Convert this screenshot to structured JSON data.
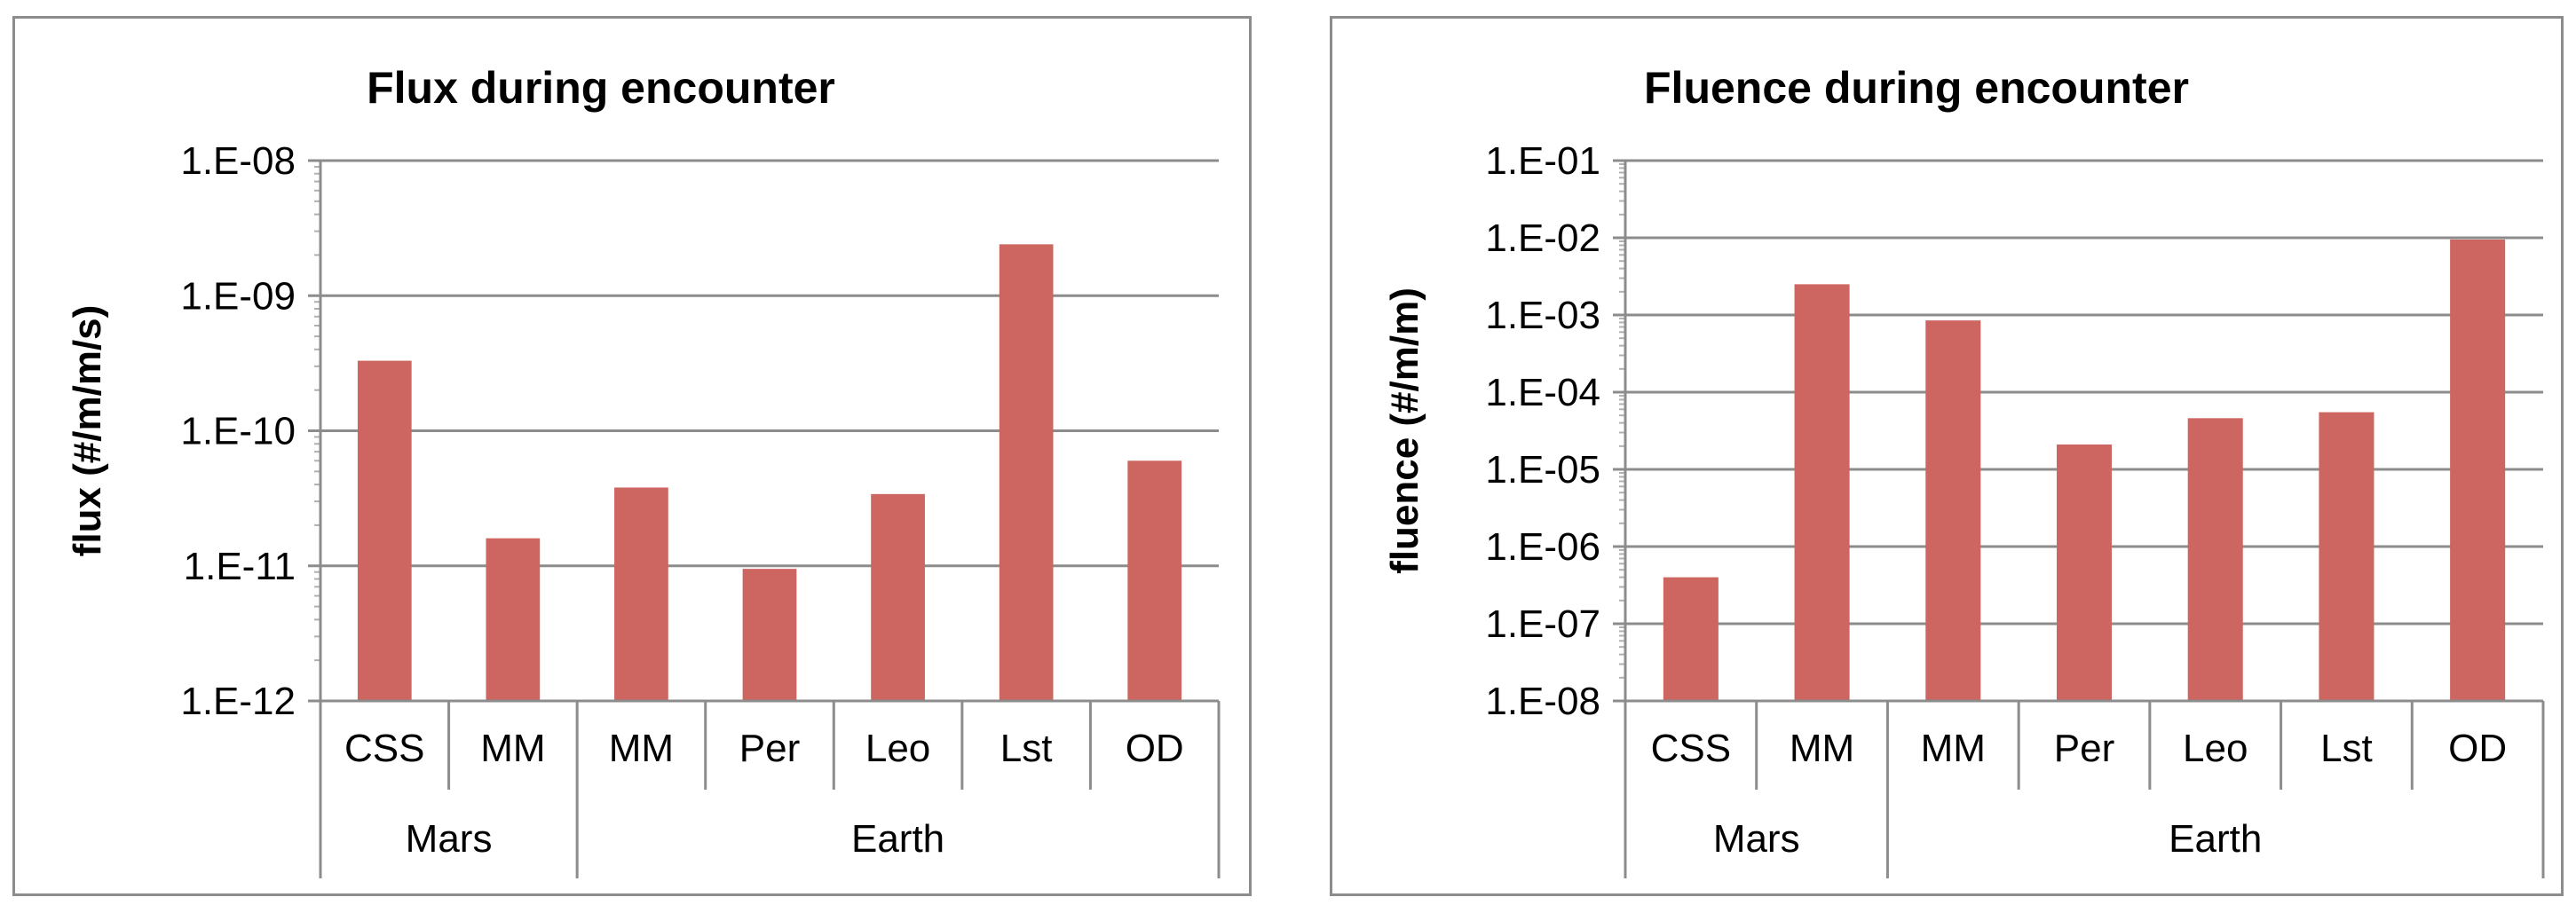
{
  "chart_data": [
    {
      "type": "bar",
      "title": "Flux during encounter",
      "xlabel": "",
      "ylabel": "flux  (#/m/m/s)",
      "yscale": "log",
      "ylim": [
        1e-12,
        1e-08
      ],
      "yticks": [
        "1.E-12",
        "1.E-11",
        "1.E-10",
        "1.E-09",
        "1.E-08"
      ],
      "categories": [
        "CSS",
        "MM",
        "MM",
        "Per",
        "Leo",
        "Lst",
        "OD"
      ],
      "groups": [
        {
          "label": "Mars",
          "count": 2
        },
        {
          "label": "Earth",
          "count": 5
        }
      ],
      "values": [
        3.3e-10,
        1.6e-11,
        3.8e-11,
        9.5e-12,
        3.4e-11,
        2.4e-09,
        6e-11
      ],
      "color": "#CD6560",
      "grid": true,
      "legend": "none"
    },
    {
      "type": "bar",
      "title": "Fluence during encounter",
      "xlabel": "",
      "ylabel": "fluence  (#/m/m)",
      "yscale": "log",
      "ylim": [
        1e-08,
        0.1
      ],
      "yticks": [
        "1.E-08",
        "1.E-07",
        "1.E-06",
        "1.E-05",
        "1.E-04",
        "1.E-03",
        "1.E-02",
        "1.E-01"
      ],
      "categories": [
        "CSS",
        "MM",
        "MM",
        "Per",
        "Leo",
        "Lst",
        "OD"
      ],
      "groups": [
        {
          "label": "Mars",
          "count": 2
        },
        {
          "label": "Earth",
          "count": 5
        }
      ],
      "values": [
        4e-07,
        0.0025,
        0.00085,
        2.1e-05,
        4.6e-05,
        5.5e-05,
        0.0095
      ],
      "color": "#CD6560",
      "grid": true,
      "legend": "none"
    }
  ]
}
